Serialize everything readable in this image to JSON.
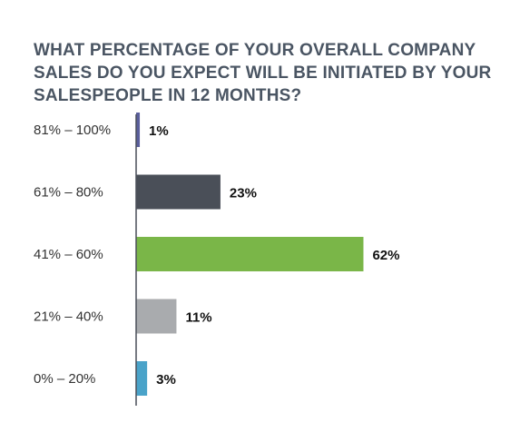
{
  "chart_data": {
    "type": "bar",
    "orientation": "horizontal",
    "title": "WHAT PERCENTAGE OF YOUR OVERALL COMPANY SALES DO YOU EXPECT WILL BE INITIATED BY YOUR SALESPEOPLE IN 12 MONTHS?",
    "categories": [
      "81% – 100%",
      "61% – 80%",
      "41% – 60%",
      "21% – 40%",
      "0% – 20%"
    ],
    "values": [
      1,
      23,
      62,
      11,
      3
    ],
    "value_labels": [
      "1%",
      "23%",
      "62%",
      "11%",
      "3%"
    ],
    "colors": [
      "#5a5f9c",
      "#4a4f58",
      "#7ab648",
      "#a9abae",
      "#4aa3c9"
    ],
    "axis_color": "#4a4f58",
    "xlim": [
      0,
      100
    ],
    "grid": false,
    "legend": "none"
  }
}
